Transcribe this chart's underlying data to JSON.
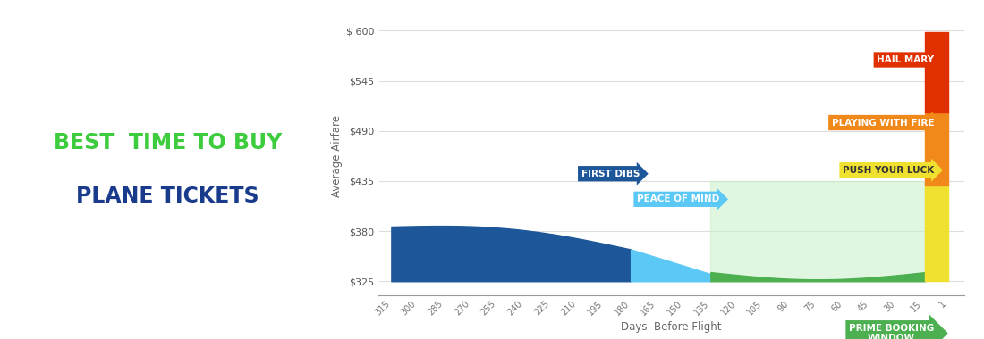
{
  "title_line1": "BEST  TIME TO BUY",
  "title_line2": "PLANE TICKETS",
  "title_color1": "#3dcc3d",
  "title_color2": "#1a3a8c",
  "bg_left_color": "#e8fce8",
  "ylabel": "Average Airfare",
  "xlabel": "Days  Before Flight",
  "yticks": [
    325,
    380,
    435,
    490,
    545,
    600
  ],
  "ytick_labels": [
    "$325",
    "$380",
    "$435",
    "$490",
    "$545",
    "$ 600"
  ],
  "xticks": [
    315,
    300,
    285,
    270,
    255,
    240,
    225,
    210,
    195,
    180,
    165,
    150,
    135,
    120,
    105,
    90,
    75,
    60,
    45,
    30,
    15,
    1
  ],
  "dark_blue": "#1e5799",
  "light_blue": "#5bc8f5",
  "green": "#4caf50",
  "light_green": "#c8f0c8",
  "yellow": "#f0e030",
  "orange": "#f0891a",
  "red": "#e03000",
  "grid_color": "#dddddd",
  "axis_color": "#999999",
  "fig_width": 11.0,
  "fig_height": 3.8
}
